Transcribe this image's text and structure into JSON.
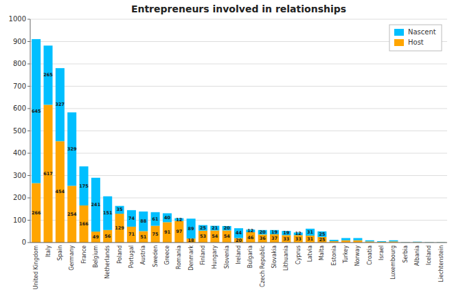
{
  "chart_data": {
    "type": "bar",
    "title": "Entrepreneurs involved in relationships",
    "categories": [
      "United Kingdom",
      "Italy",
      "Spain",
      "Germany",
      "France",
      "Belgium",
      "Netherlands",
      "Poland",
      "Portugal",
      "Austria",
      "Sweden",
      "Greece",
      "Romania",
      "Denmark",
      "Finland",
      "Hungary",
      "Slovenia",
      "Ireland",
      "Bulgaria",
      "Czech Republic",
      "Slovakia",
      "Lithuania",
      "Cyprus",
      "Latvia",
      "Malta",
      "Estonia",
      "Turkey",
      "Norway",
      "Croatia",
      "Israel",
      "Luxembourg",
      "Serbia",
      "Albania",
      "Iceland",
      "Liechtenstein"
    ],
    "series": [
      {
        "name": "Host",
        "color": "#ffa500",
        "values": [
          266,
          617,
          454,
          254,
          166,
          49,
          56,
          129,
          71,
          51,
          75,
          91,
          97,
          18,
          53,
          54,
          54,
          20,
          46,
          36,
          37,
          33,
          33,
          31,
          25,
          6,
          10,
          10,
          5,
          3,
          5,
          1,
          2,
          1,
          1
        ]
      },
      {
        "name": "Nascent",
        "color": "#00bfff",
        "values": [
          645,
          265,
          327,
          329,
          175,
          241,
          151,
          35,
          74,
          88,
          61,
          40,
          12,
          89,
          25,
          21,
          20,
          44,
          12,
          20,
          19,
          19,
          12,
          31,
          25,
          6,
          10,
          10,
          5,
          3,
          5,
          1,
          2,
          1,
          1
        ]
      }
    ],
    "stacked": true,
    "ylim": [
      0,
      1000
    ],
    "yticks": [
      0,
      100,
      200,
      300,
      400,
      500,
      600,
      700,
      800,
      900,
      1000
    ],
    "grid": true,
    "legend": "upper-right",
    "data_labels": true
  }
}
